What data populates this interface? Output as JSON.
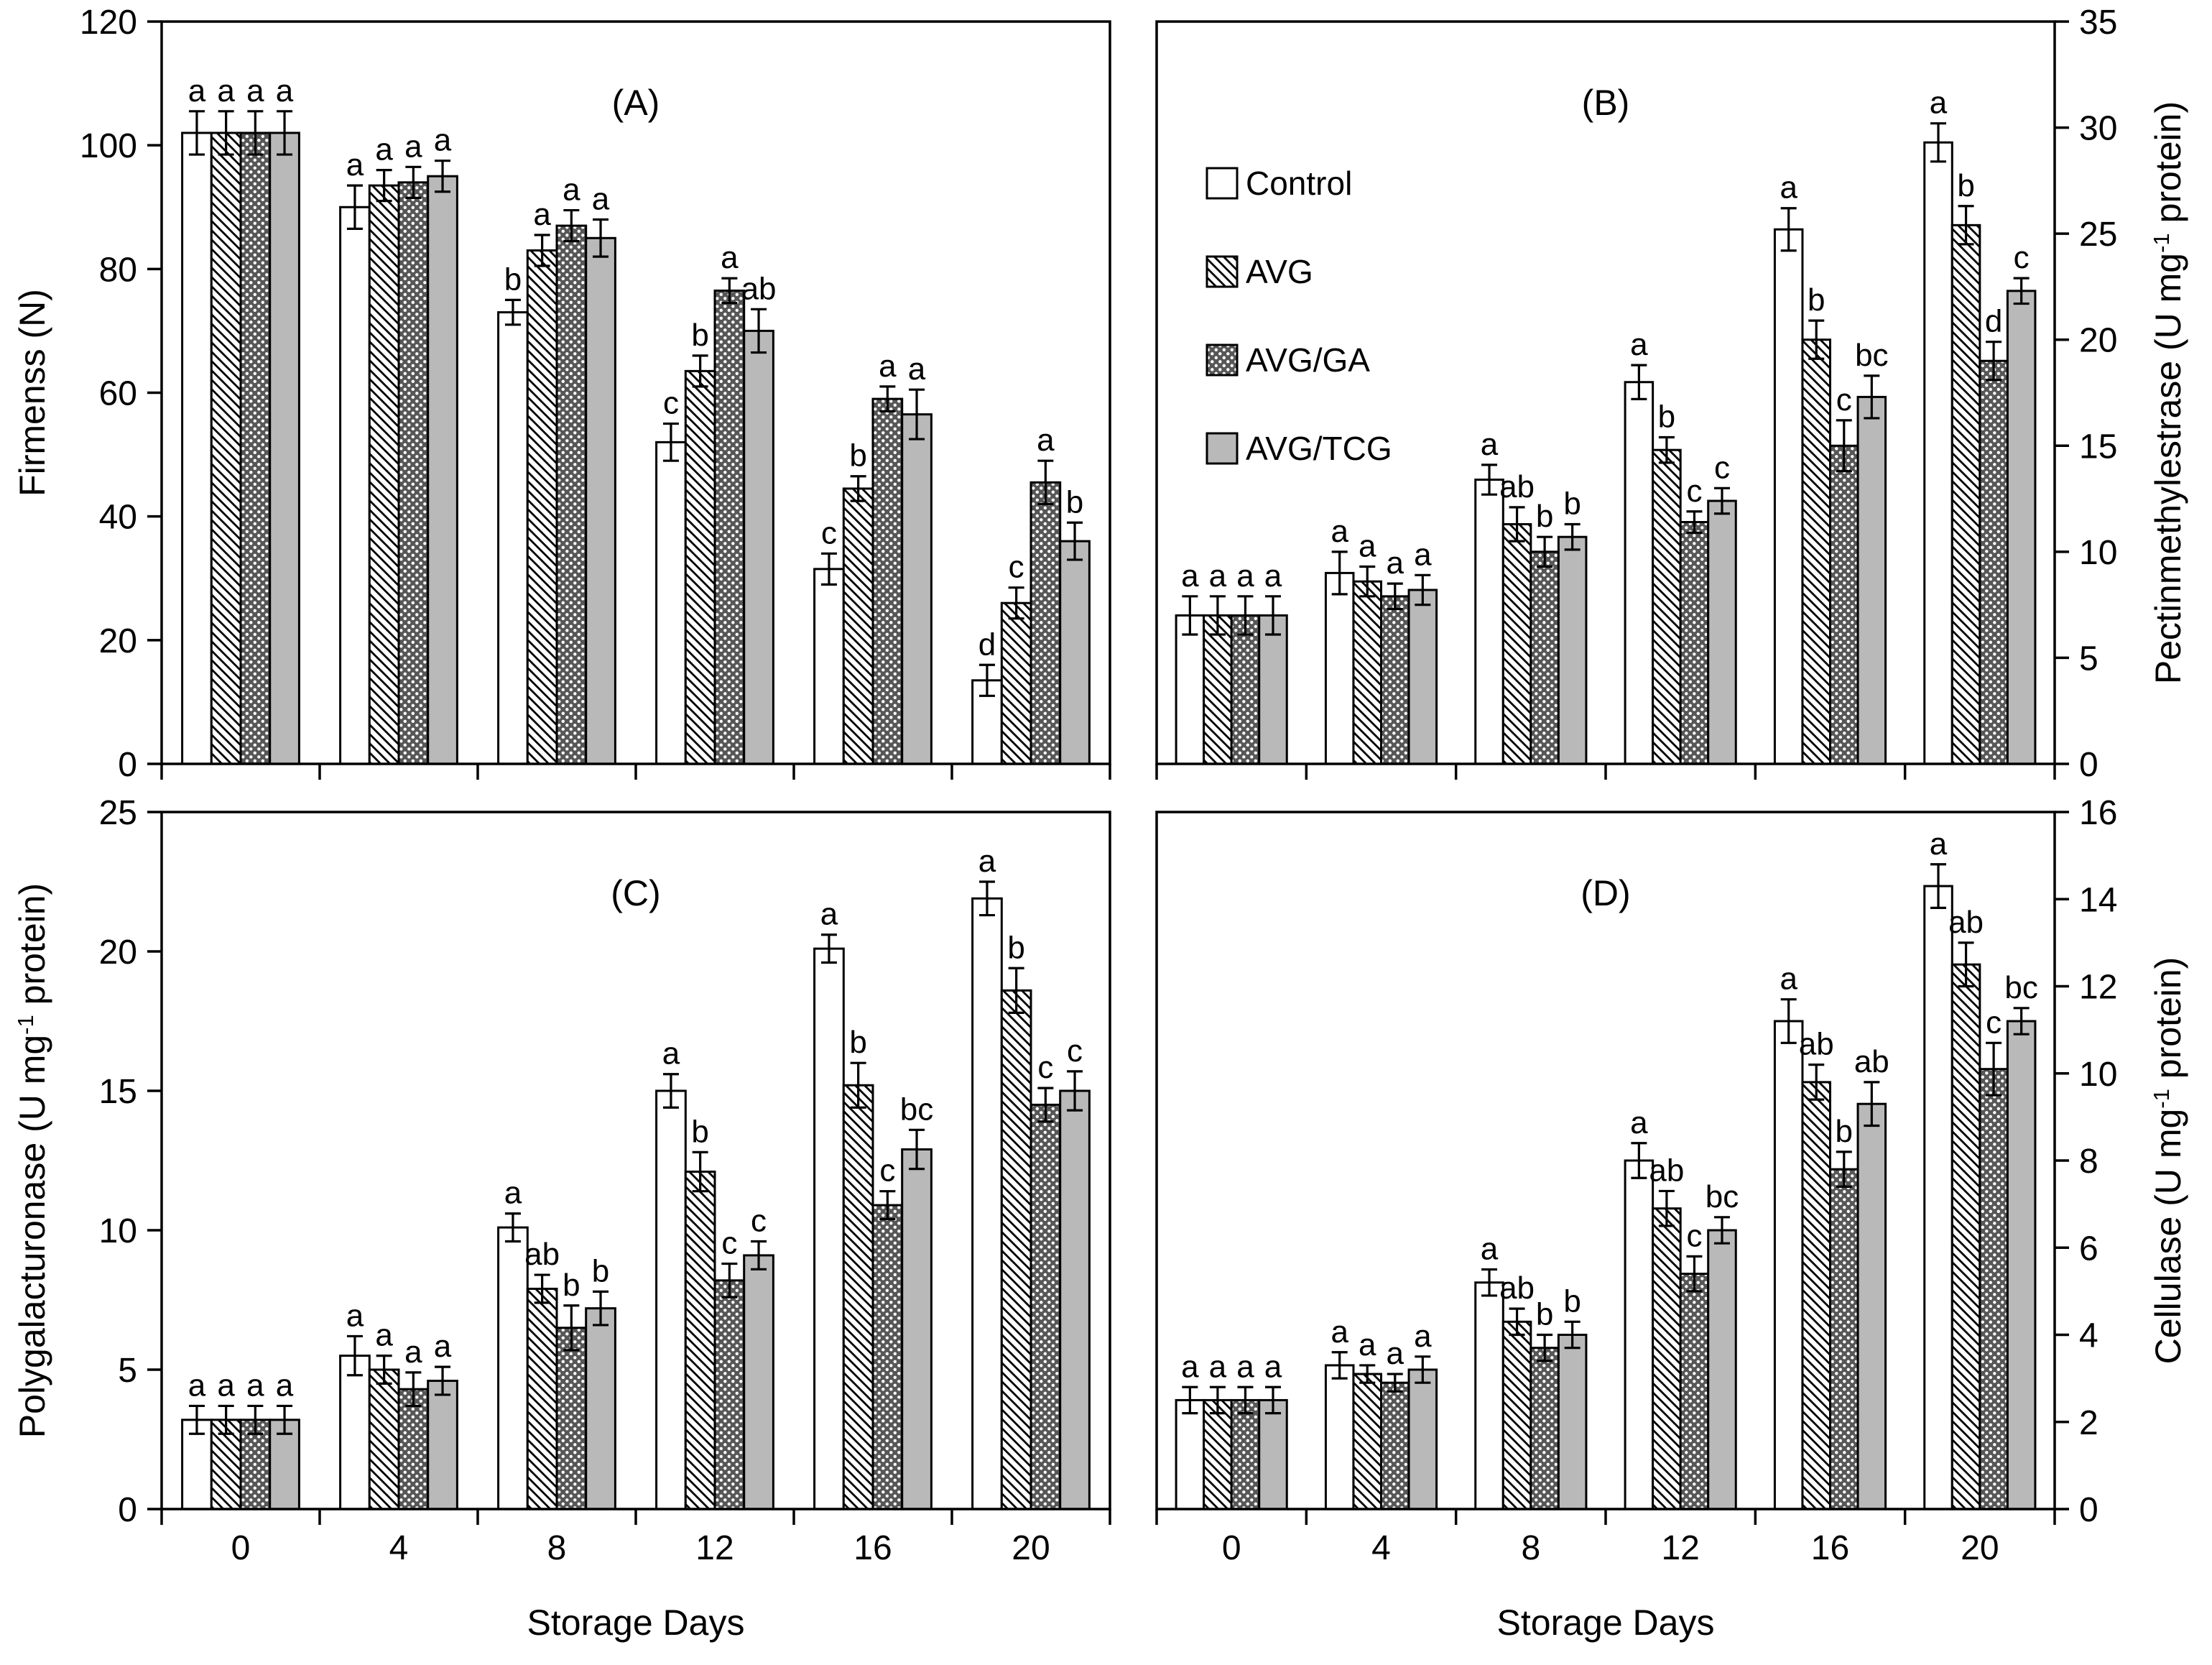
{
  "figure": {
    "xlabel": "Storage Days",
    "categories": [
      "0",
      "4",
      "8",
      "12",
      "16",
      "20"
    ],
    "legend": [
      {
        "label": "Control",
        "swatch": "white"
      },
      {
        "label": "AVG",
        "swatch": "diagonal-hatch"
      },
      {
        "label": "AVG/GA",
        "swatch": "dark-dot-mesh"
      },
      {
        "label": "AVG/TCG",
        "swatch": "solid-gray"
      }
    ],
    "colors": {
      "background": "#ffffff",
      "bar_outline": "#000000",
      "control_fill": "#ffffff",
      "avg_hatch_color": "#000000",
      "avg_ga_base": "#575757",
      "avg_ga_dots": "#ffffff",
      "avg_tcg_fill": "#b9b9b9",
      "text": "#000000"
    }
  },
  "chart_data": [
    {
      "panel": "A",
      "type": "bar",
      "title": "(A)",
      "ylabel": "Firmenss (N)",
      "axis_side": "left",
      "ylim": [
        0,
        120
      ],
      "yticks": [
        0,
        20,
        40,
        60,
        80,
        100,
        120
      ],
      "grid": false,
      "show_x_tick_labels": false,
      "legend_in_panel": false,
      "categories": [
        "0",
        "4",
        "8",
        "12",
        "16",
        "20"
      ],
      "series": [
        {
          "name": "Control",
          "values": [
            102,
            90,
            73,
            52,
            31.5,
            13.5
          ],
          "errors": [
            3.5,
            3.5,
            2,
            3,
            2.5,
            2.5
          ],
          "letters": [
            "a",
            "a",
            "b",
            "c",
            "c",
            "d"
          ]
        },
        {
          "name": "AVG",
          "values": [
            102,
            93.5,
            83,
            63.5,
            44.5,
            26
          ],
          "errors": [
            3.5,
            2.5,
            2.5,
            2.5,
            2,
            2.5
          ],
          "letters": [
            "a",
            "a",
            "a",
            "b",
            "b",
            "c"
          ]
        },
        {
          "name": "AVG/GA",
          "values": [
            102,
            94,
            87,
            76.5,
            59,
            45.5
          ],
          "errors": [
            3.5,
            2.5,
            2.5,
            2,
            2,
            3.5
          ],
          "letters": [
            "a",
            "a",
            "a",
            "a",
            "a",
            "a"
          ]
        },
        {
          "name": "AVG/TCG",
          "values": [
            102,
            95,
            85,
            70,
            56.5,
            36
          ],
          "errors": [
            3.5,
            2.5,
            3,
            3.5,
            4,
            3
          ],
          "letters": [
            "a",
            "a",
            "a",
            "ab",
            "a",
            "b"
          ]
        }
      ]
    },
    {
      "panel": "B",
      "type": "bar",
      "title": "(B)",
      "ylabel": "Pectinmethylestrase (U mg⁻¹ protein)",
      "axis_side": "right",
      "ylim": [
        0,
        35
      ],
      "yticks": [
        0,
        5,
        10,
        15,
        20,
        25,
        30,
        35
      ],
      "grid": false,
      "show_x_tick_labels": false,
      "legend_in_panel": true,
      "categories": [
        "0",
        "4",
        "8",
        "12",
        "16",
        "20"
      ],
      "series": [
        {
          "name": "Control",
          "values": [
            7.0,
            9.0,
            13.4,
            18.0,
            25.2,
            29.3
          ],
          "errors": [
            0.9,
            1.0,
            0.7,
            0.8,
            1.0,
            0.9
          ],
          "letters": [
            "a",
            "a",
            "a",
            "a",
            "a",
            "a"
          ]
        },
        {
          "name": "AVG",
          "values": [
            7.0,
            8.6,
            11.3,
            14.8,
            20.0,
            25.4
          ],
          "errors": [
            0.9,
            0.7,
            0.8,
            0.6,
            0.9,
            0.9
          ],
          "letters": [
            "a",
            "a",
            "ab",
            "b",
            "b",
            "b"
          ]
        },
        {
          "name": "AVG/GA",
          "values": [
            7.0,
            7.9,
            10.0,
            11.4,
            15.0,
            19.0
          ],
          "errors": [
            0.9,
            0.6,
            0.7,
            0.5,
            1.2,
            0.9
          ],
          "letters": [
            "a",
            "a",
            "b",
            "c",
            "c",
            "d"
          ]
        },
        {
          "name": "AVG/TCG",
          "values": [
            7.0,
            8.2,
            10.7,
            12.4,
            17.3,
            22.3
          ],
          "errors": [
            0.9,
            0.7,
            0.6,
            0.6,
            1.0,
            0.6
          ],
          "letters": [
            "a",
            "a",
            "b",
            "c",
            "bc",
            "c"
          ]
        }
      ]
    },
    {
      "panel": "C",
      "type": "bar",
      "title": "(C)",
      "ylabel": "Polygalacturonase (U mg⁻¹ protein)",
      "axis_side": "left",
      "ylim": [
        0,
        25
      ],
      "yticks": [
        0,
        5,
        10,
        15,
        20,
        25
      ],
      "grid": false,
      "show_x_tick_labels": true,
      "legend_in_panel": false,
      "categories": [
        "0",
        "4",
        "8",
        "12",
        "16",
        "20"
      ],
      "series": [
        {
          "name": "Control",
          "values": [
            3.2,
            5.5,
            10.1,
            15.0,
            20.1,
            21.9
          ],
          "errors": [
            0.5,
            0.7,
            0.5,
            0.6,
            0.5,
            0.6
          ],
          "letters": [
            "a",
            "a",
            "a",
            "a",
            "a",
            "a"
          ]
        },
        {
          "name": "AVG",
          "values": [
            3.2,
            5.0,
            7.9,
            12.1,
            15.2,
            18.6
          ],
          "errors": [
            0.5,
            0.5,
            0.5,
            0.7,
            0.8,
            0.8
          ],
          "letters": [
            "a",
            "a",
            "ab",
            "b",
            "b",
            "b"
          ]
        },
        {
          "name": "AVG/GA",
          "values": [
            3.2,
            4.3,
            6.5,
            8.2,
            10.9,
            14.5
          ],
          "errors": [
            0.5,
            0.6,
            0.8,
            0.6,
            0.5,
            0.6
          ],
          "letters": [
            "a",
            "a",
            "b",
            "c",
            "c",
            "c"
          ]
        },
        {
          "name": "AVG/TCG",
          "values": [
            3.2,
            4.6,
            7.2,
            9.1,
            12.9,
            15.0
          ],
          "errors": [
            0.5,
            0.5,
            0.6,
            0.5,
            0.7,
            0.7
          ],
          "letters": [
            "a",
            "a",
            "b",
            "c",
            "bc",
            "c"
          ]
        }
      ]
    },
    {
      "panel": "D",
      "type": "bar",
      "title": "(D)",
      "ylabel": "Cellulase (U mg⁻¹ protein)",
      "axis_side": "right",
      "ylim": [
        0,
        16
      ],
      "yticks": [
        0,
        2,
        4,
        6,
        8,
        10,
        12,
        14,
        16
      ],
      "grid": false,
      "show_x_tick_labels": true,
      "legend_in_panel": false,
      "categories": [
        "0",
        "4",
        "8",
        "12",
        "16",
        "20"
      ],
      "series": [
        {
          "name": "Control",
          "values": [
            2.5,
            3.3,
            5.2,
            8.0,
            11.2,
            14.3
          ],
          "errors": [
            0.3,
            0.3,
            0.3,
            0.4,
            0.5,
            0.5
          ],
          "letters": [
            "a",
            "a",
            "a",
            "a",
            "a",
            "a"
          ]
        },
        {
          "name": "AVG",
          "values": [
            2.5,
            3.1,
            4.3,
            6.9,
            9.8,
            12.5
          ],
          "errors": [
            0.3,
            0.2,
            0.3,
            0.4,
            0.4,
            0.5
          ],
          "letters": [
            "a",
            "a",
            "ab",
            "ab",
            "ab",
            "ab"
          ]
        },
        {
          "name": "AVG/GA",
          "values": [
            2.5,
            2.9,
            3.7,
            5.4,
            7.8,
            10.1
          ],
          "errors": [
            0.3,
            0.2,
            0.3,
            0.4,
            0.4,
            0.6
          ],
          "letters": [
            "a",
            "a",
            "b",
            "c",
            "b",
            "c"
          ]
        },
        {
          "name": "AVG/TCG",
          "values": [
            2.5,
            3.2,
            4.0,
            6.4,
            9.3,
            11.2
          ],
          "errors": [
            0.3,
            0.3,
            0.3,
            0.3,
            0.5,
            0.3
          ],
          "letters": [
            "a",
            "a",
            "b",
            "bc",
            "ab",
            "bc"
          ]
        }
      ]
    }
  ]
}
